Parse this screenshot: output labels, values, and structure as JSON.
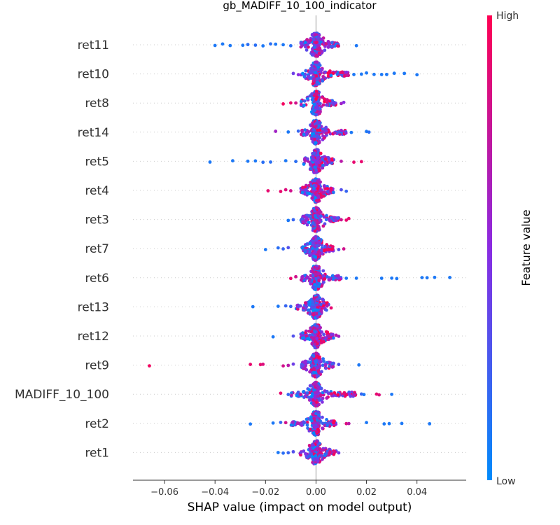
{
  "chart_data": {
    "type": "scatter",
    "subtype": "shap-beeswarm",
    "title": "gb_MADIFF_10_100_indicator",
    "xlabel": "SHAP value (impact on model output)",
    "xlim": [
      -0.0725,
      0.0595
    ],
    "xticks": [
      -0.06,
      -0.04,
      -0.02,
      0.0,
      0.02,
      0.04
    ],
    "xtick_labels": [
      "−0.06",
      "−0.04",
      "−0.02",
      "0.00",
      "0.02",
      "0.04"
    ],
    "features": [
      "ret11",
      "ret10",
      "ret8",
      "ret14",
      "ret5",
      "ret4",
      "ret3",
      "ret7",
      "ret6",
      "ret13",
      "ret12",
      "ret9",
      "MADIFF_10_100",
      "ret2",
      "ret1"
    ],
    "colorbar": {
      "title": "Feature value",
      "high_label": "High",
      "low_label": "Low",
      "high_color": "#ff0052",
      "mid_color": "#8a2be2",
      "low_color": "#008bfb"
    },
    "series": [
      {
        "feature": "ret11",
        "core": [
          -0.006,
          0.009
        ],
        "outliers": [
          [
            -0.04,
            0.1
          ],
          [
            -0.037,
            0.1
          ],
          [
            -0.034,
            0.1
          ],
          [
            -0.029,
            0.1
          ],
          [
            -0.027,
            0.15
          ],
          [
            -0.024,
            0.15
          ],
          [
            -0.021,
            0.1
          ],
          [
            -0.018,
            0.15
          ],
          [
            -0.016,
            0.1
          ],
          [
            -0.013,
            0.1
          ],
          [
            -0.01,
            0.15
          ],
          [
            0.016,
            0.1
          ]
        ]
      },
      {
        "feature": "ret10",
        "core": [
          -0.006,
          0.013
        ],
        "outliers": [
          [
            -0.009,
            0.4
          ],
          [
            -0.007,
            0.5
          ],
          [
            0.015,
            0.1
          ],
          [
            0.018,
            0.1
          ],
          [
            0.02,
            0.1
          ],
          [
            0.023,
            0.1
          ],
          [
            0.026,
            0.1
          ],
          [
            0.028,
            0.1
          ],
          [
            0.031,
            0.1
          ],
          [
            0.035,
            0.1
          ],
          [
            0.04,
            0.1
          ]
        ]
      },
      {
        "feature": "ret8",
        "core": [
          -0.006,
          0.008
        ],
        "outliers": [
          [
            -0.013,
            0.95
          ],
          [
            -0.01,
            0.9
          ],
          [
            -0.008,
            0.8
          ],
          [
            0.01,
            0.6
          ],
          [
            0.011,
            0.5
          ]
        ]
      },
      {
        "feature": "ret14",
        "core": [
          -0.006,
          0.012
        ],
        "outliers": [
          [
            -0.016,
            0.6
          ],
          [
            -0.011,
            0.1
          ],
          [
            -0.007,
            0.2
          ],
          [
            0.014,
            0.1
          ],
          [
            0.02,
            0.1
          ],
          [
            0.021,
            0.15
          ]
        ]
      },
      {
        "feature": "ret5",
        "core": [
          -0.005,
          0.007
        ],
        "outliers": [
          [
            -0.042,
            0.1
          ],
          [
            -0.033,
            0.1
          ],
          [
            -0.027,
            0.1
          ],
          [
            -0.024,
            0.1
          ],
          [
            -0.021,
            0.15
          ],
          [
            -0.018,
            0.15
          ],
          [
            -0.012,
            0.1
          ],
          [
            -0.008,
            0.15
          ],
          [
            0.01,
            0.7
          ],
          [
            0.015,
            0.9
          ],
          [
            0.018,
            0.9
          ]
        ]
      },
      {
        "feature": "ret4",
        "core": [
          -0.006,
          0.007
        ],
        "outliers": [
          [
            -0.019,
            0.9
          ],
          [
            -0.014,
            0.9
          ],
          [
            -0.012,
            0.85
          ],
          [
            -0.01,
            0.8
          ],
          [
            0.01,
            0.3
          ],
          [
            0.012,
            0.2
          ]
        ]
      },
      {
        "feature": "ret3",
        "core": [
          -0.006,
          0.009
        ],
        "outliers": [
          [
            -0.011,
            0.1
          ],
          [
            -0.009,
            0.2
          ],
          [
            0.01,
            0.8
          ],
          [
            0.012,
            0.9
          ],
          [
            0.013,
            0.9
          ]
        ]
      },
      {
        "feature": "ret7",
        "core": [
          -0.006,
          0.007
        ],
        "outliers": [
          [
            -0.02,
            0.1
          ],
          [
            -0.015,
            0.15
          ],
          [
            -0.013,
            0.2
          ],
          [
            -0.011,
            0.3
          ],
          [
            0.009,
            0.3
          ],
          [
            0.011,
            0.8
          ]
        ]
      },
      {
        "feature": "ret6",
        "core": [
          -0.006,
          0.01
        ],
        "outliers": [
          [
            -0.01,
            0.9
          ],
          [
            -0.008,
            0.8
          ],
          [
            0.012,
            0.1
          ],
          [
            0.016,
            0.1
          ],
          [
            0.026,
            0.1
          ],
          [
            0.03,
            0.1
          ],
          [
            0.032,
            0.1
          ],
          [
            0.042,
            0.1
          ],
          [
            0.044,
            0.1
          ],
          [
            0.047,
            0.1
          ],
          [
            0.053,
            0.1
          ]
        ]
      },
      {
        "feature": "ret13",
        "core": [
          -0.008,
          0.005
        ],
        "outliers": [
          [
            -0.025,
            0.1
          ],
          [
            -0.015,
            0.1
          ],
          [
            -0.012,
            0.2
          ],
          [
            -0.01,
            0.2
          ],
          [
            0.006,
            0.9
          ]
        ]
      },
      {
        "feature": "ret12",
        "core": [
          -0.006,
          0.007
        ],
        "outliers": [
          [
            -0.017,
            0.1
          ],
          [
            -0.009,
            0.3
          ],
          [
            0.008,
            0.7
          ],
          [
            0.009,
            0.6
          ]
        ]
      },
      {
        "feature": "ret9",
        "core": [
          -0.006,
          0.007
        ],
        "outliers": [
          [
            -0.066,
            0.95
          ],
          [
            -0.026,
            0.9
          ],
          [
            -0.022,
            0.9
          ],
          [
            -0.021,
            0.85
          ],
          [
            -0.013,
            0.8
          ],
          [
            -0.011,
            0.7
          ],
          [
            -0.009,
            0.4
          ],
          [
            0.009,
            0.3
          ],
          [
            0.017,
            0.1
          ]
        ]
      },
      {
        "feature": "MADIFF_10_100",
        "core": [
          -0.01,
          0.016
        ],
        "outliers": [
          [
            -0.014,
            0.9
          ],
          [
            -0.011,
            0.2
          ],
          [
            0.018,
            0.2
          ],
          [
            0.019,
            0.1
          ],
          [
            0.024,
            0.9
          ],
          [
            0.025,
            0.85
          ],
          [
            0.03,
            0.1
          ]
        ]
      },
      {
        "feature": "ret2",
        "core": [
          -0.01,
          0.008
        ],
        "outliers": [
          [
            -0.026,
            0.1
          ],
          [
            -0.017,
            0.1
          ],
          [
            -0.014,
            0.2
          ],
          [
            -0.012,
            0.8
          ],
          [
            0.012,
            0.85
          ],
          [
            0.013,
            0.7
          ],
          [
            0.02,
            0.1
          ],
          [
            0.027,
            0.1
          ],
          [
            0.029,
            0.1
          ],
          [
            0.034,
            0.1
          ],
          [
            0.045,
            0.1
          ]
        ]
      },
      {
        "feature": "ret1",
        "core": [
          -0.007,
          0.008
        ],
        "outliers": [
          [
            -0.015,
            0.1
          ],
          [
            -0.013,
            0.15
          ],
          [
            -0.011,
            0.2
          ],
          [
            -0.009,
            0.3
          ],
          [
            0.009,
            0.4
          ]
        ]
      }
    ]
  }
}
